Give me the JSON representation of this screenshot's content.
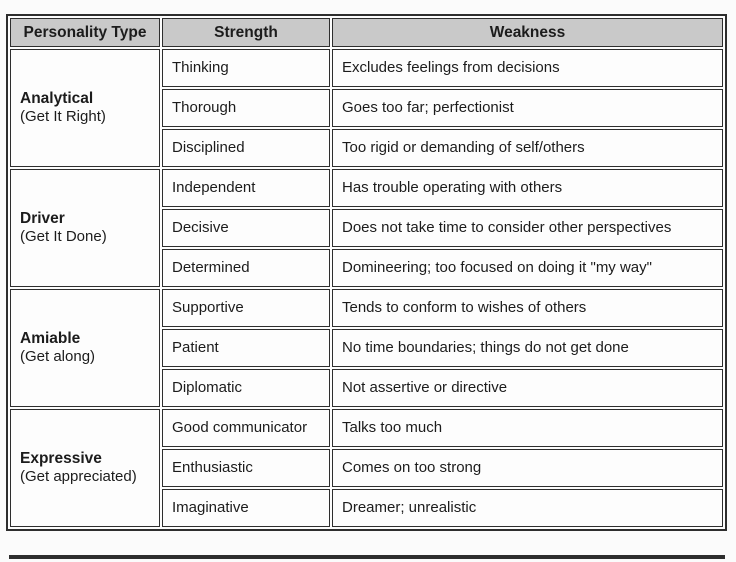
{
  "table": {
    "headers": [
      "Personality Type",
      "Strength",
      "Weakness"
    ],
    "groups": [
      {
        "type": "Analytical",
        "subtitle": "(Get It Right)",
        "rows": [
          {
            "strength": "Thinking",
            "weakness": "Excludes feelings from decisions"
          },
          {
            "strength": "Thorough",
            "weakness": "Goes too far; perfectionist"
          },
          {
            "strength": "Disciplined",
            "weakness": "Too rigid or demanding of self/others"
          }
        ]
      },
      {
        "type": "Driver",
        "subtitle": "(Get It Done)",
        "rows": [
          {
            "strength": "Independent",
            "weakness": "Has trouble operating with others"
          },
          {
            "strength": "Decisive",
            "weakness": "Does not take time to consider other perspectives"
          },
          {
            "strength": "Determined",
            "weakness": "Domineering; too focused on doing it \"my way\""
          }
        ]
      },
      {
        "type": "Amiable",
        "subtitle": "(Get along)",
        "rows": [
          {
            "strength": "Supportive",
            "weakness": "Tends to conform to wishes of others"
          },
          {
            "strength": "Patient",
            "weakness": "No time boundaries; things do not get done"
          },
          {
            "strength": "Diplomatic",
            "weakness": "Not assertive or directive"
          }
        ]
      },
      {
        "type": "Expressive",
        "subtitle": "(Get appreciated)",
        "rows": [
          {
            "strength": "Good communicator",
            "weakness": "Talks too much"
          },
          {
            "strength": "Enthusiastic",
            "weakness": "Comes on too strong"
          },
          {
            "strength": "Imaginative",
            "weakness": "Dreamer; unrealistic"
          }
        ]
      }
    ],
    "colors": {
      "header_bg": "#c9c9c9",
      "border": "#2e2e2e",
      "text": "#1c1c1c",
      "page_bg": "#fbfbfb"
    }
  }
}
